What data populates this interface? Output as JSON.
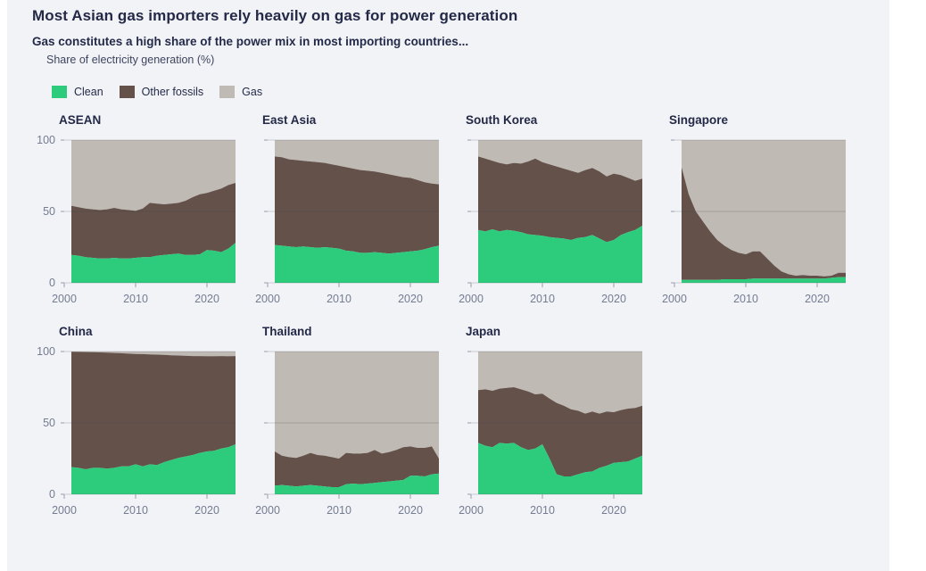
{
  "page": {
    "title": "Most Asian gas importers rely heavily on gas for power generation",
    "subtitle": "Gas constitutes a high share of the power mix in most importing countries...",
    "axis_note": "Share of electricity generation (%)"
  },
  "legend": [
    {
      "label": "Clean",
      "color": "#2dcc7d"
    },
    {
      "label": "Other fossils",
      "color": "#63514a"
    },
    {
      "label": "Gas",
      "color": "#c0bab4"
    }
  ],
  "chart_data": {
    "type": "area",
    "stacked": true,
    "title": "Gas constitutes a high share of the power mix in most importing countries...",
    "ylabel": "Share of electricity generation (%)",
    "unit": "percent of electricity generation",
    "ylim": [
      0,
      100
    ],
    "y_ticks": [
      0,
      50,
      100
    ],
    "x_axis": [
      2000,
      2024
    ],
    "x_years": {
      "start": 2001,
      "step": 1
    },
    "x_ticks": [
      2000,
      2010,
      2020
    ],
    "grid": true,
    "legend_position": "top-left",
    "series_names": [
      "Clean",
      "Other fossils",
      "Gas"
    ],
    "gas_is_remainder_to_100": true,
    "panels": [
      {
        "title": "ASEAN",
        "series": {
          "Clean": [
            19.5,
            19,
            18,
            17.5,
            17,
            17,
            17.5,
            17,
            17,
            17.5,
            18,
            18,
            19,
            19.5,
            20,
            20.5,
            19.5,
            19.5,
            20,
            23,
            22.5,
            21.5,
            24,
            28
          ],
          "Other fossils": [
            34.5,
            34,
            34,
            34,
            34,
            34.5,
            35,
            34.5,
            34,
            33,
            34,
            38,
            36.5,
            35.5,
            35.5,
            35.5,
            38,
            40.5,
            42,
            40,
            42,
            44.5,
            44.5,
            42
          ]
        }
      },
      {
        "title": "East Asia",
        "series": {
          "Clean": [
            26.5,
            26,
            25.5,
            25,
            25.5,
            25,
            24.5,
            25,
            24.5,
            24,
            22.5,
            22,
            21,
            21,
            21.5,
            21,
            20.5,
            21,
            21.5,
            22,
            22.5,
            23.5,
            25,
            26
          ],
          "Other fossils": [
            62,
            62,
            61,
            61,
            60,
            60,
            60,
            59,
            58.5,
            58,
            58.5,
            58,
            58,
            57.5,
            56.5,
            56,
            55.5,
            54,
            52.5,
            51.5,
            49.5,
            47,
            44.5,
            43
          ]
        }
      },
      {
        "title": "South Korea",
        "series": {
          "Clean": [
            37,
            36,
            37.5,
            36,
            37,
            36.5,
            35.5,
            34,
            33.5,
            33,
            32,
            31.5,
            31,
            30,
            31.5,
            32,
            33.5,
            31,
            28.5,
            30,
            33.5,
            35.5,
            37,
            40
          ],
          "Other fossils": [
            51.5,
            51,
            48,
            48,
            46,
            47.5,
            48,
            51,
            53.5,
            51.5,
            51,
            50,
            49,
            48.5,
            45.5,
            47,
            47,
            47,
            46,
            46.5,
            42,
            38,
            34.5,
            33
          ]
        }
      },
      {
        "title": "Singapore",
        "series": {
          "Clean": [
            2,
            2,
            2,
            2,
            2,
            2,
            2.5,
            2.5,
            2.5,
            2.5,
            3,
            3,
            3,
            3,
            3,
            3,
            3,
            3,
            3,
            3,
            3,
            3.5,
            4,
            4
          ],
          "Other fossils": [
            79,
            60,
            48,
            41,
            34,
            28,
            23.5,
            20.5,
            18.5,
            17.5,
            19,
            19,
            14,
            9,
            5,
            3,
            2,
            2.5,
            2,
            2,
            1.5,
            1.5,
            3,
            3
          ]
        }
      },
      {
        "title": "China",
        "series": {
          "Clean": [
            19,
            18.5,
            17.5,
            18.5,
            18.5,
            18,
            18.5,
            19.5,
            19.5,
            21,
            19.5,
            21,
            20.5,
            22.5,
            24,
            25.5,
            26.5,
            27.5,
            29,
            30,
            30.5,
            32,
            33,
            35
          ],
          "Other fossils": [
            80.8,
            81.2,
            82.1,
            81,
            80.9,
            81.2,
            80.5,
            79.3,
            79,
            77.3,
            78.7,
            77,
            77.3,
            75.1,
            73.4,
            71.7,
            70.5,
            69.3,
            67.8,
            66.7,
            66.2,
            64.8,
            63.7,
            61.8
          ]
        }
      },
      {
        "title": "Thailand",
        "series": {
          "Clean": [
            6,
            6.5,
            6,
            5.5,
            6,
            6.5,
            6,
            5.5,
            5,
            5,
            7,
            7.5,
            7,
            7.5,
            8,
            8.5,
            9,
            9.5,
            10,
            13,
            13,
            12.5,
            14,
            14.5
          ],
          "Other fossils": [
            24,
            20.5,
            20,
            20,
            21,
            22.5,
            21.5,
            21.5,
            21,
            20,
            22,
            21,
            21.5,
            21.5,
            23,
            20,
            20.5,
            21.5,
            23,
            20.5,
            19.5,
            20,
            19.5,
            10.5
          ]
        }
      },
      {
        "title": "Japan",
        "series": {
          "Clean": [
            36,
            34,
            33,
            36,
            35.5,
            36,
            33,
            31,
            32,
            35,
            25,
            14,
            12.5,
            12.5,
            14,
            15.5,
            16,
            18.5,
            20,
            22,
            22.5,
            23,
            25,
            27
          ],
          "Other fossils": [
            37,
            39.5,
            39.5,
            38,
            39,
            39,
            40.5,
            41,
            38,
            35.5,
            42,
            50,
            49.5,
            47,
            44.5,
            41,
            42,
            38,
            38,
            35.5,
            36.5,
            37,
            35.5,
            35
          ]
        }
      }
    ]
  }
}
